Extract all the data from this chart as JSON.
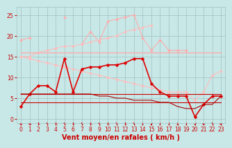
{
  "series": [
    {
      "name": "pink_spiky_top",
      "color": "#ffaaaa",
      "linewidth": 0.8,
      "marker": "D",
      "markersize": 2.0,
      "values": [
        19.0,
        19.5,
        null,
        null,
        null,
        24.5,
        null,
        18.0,
        21.0,
        18.5,
        23.5,
        24.0,
        24.5,
        25.0,
        19.5,
        16.5,
        19.0,
        16.5,
        16.5,
        16.5,
        null,
        null,
        null,
        null
      ]
    },
    {
      "name": "pink_rising_line",
      "color": "#ffbbbb",
      "linewidth": 0.8,
      "marker": "D",
      "markersize": 2.0,
      "values": [
        15.0,
        15.0,
        16.0,
        16.5,
        17.0,
        17.5,
        17.5,
        18.0,
        18.5,
        19.0,
        19.5,
        20.0,
        21.0,
        21.5,
        22.0,
        22.5,
        null,
        null,
        null,
        null,
        null,
        null,
        null,
        null
      ]
    },
    {
      "name": "pink_flat_16",
      "color": "#ffaaaa",
      "linewidth": 1.0,
      "marker": null,
      "markersize": 0,
      "values": [
        16.0,
        16.0,
        16.0,
        16.0,
        16.0,
        16.0,
        16.0,
        16.0,
        16.0,
        16.0,
        16.0,
        16.0,
        16.0,
        16.0,
        16.0,
        16.0,
        16.0,
        16.0,
        16.0,
        16.0,
        16.0,
        16.0,
        16.0,
        16.0
      ]
    },
    {
      "name": "pink_decreasing",
      "color": "#ffbbbb",
      "linewidth": 0.8,
      "marker": "D",
      "markersize": 2.0,
      "values": [
        15.0,
        14.5,
        14.0,
        13.5,
        13.0,
        12.5,
        12.0,
        11.5,
        11.0,
        10.5,
        10.0,
        9.5,
        9.0,
        8.5,
        8.0,
        7.5,
        7.0,
        6.5,
        6.5,
        6.5,
        4.5,
        6.5,
        10.5,
        11.5
      ]
    },
    {
      "name": "red_main_line",
      "color": "#dd0000",
      "linewidth": 1.2,
      "marker": "D",
      "markersize": 2.5,
      "values": [
        3.0,
        6.0,
        8.0,
        8.0,
        6.5,
        14.5,
        6.5,
        12.0,
        12.5,
        12.5,
        13.0,
        13.0,
        13.5,
        14.5,
        14.5,
        8.5,
        6.5,
        5.5,
        5.5,
        5.5,
        0.5,
        3.5,
        5.5,
        5.5
      ]
    },
    {
      "name": "red_low_flat",
      "color": "#cc0000",
      "linewidth": 0.8,
      "marker": null,
      "markersize": 0,
      "values": [
        6.0,
        6.0,
        6.0,
        6.0,
        6.0,
        6.0,
        6.0,
        6.0,
        6.0,
        6.0,
        6.0,
        6.0,
        6.0,
        6.0,
        6.0,
        6.0,
        6.0,
        6.0,
        6.0,
        6.0,
        6.0,
        6.0,
        6.0,
        6.0
      ]
    },
    {
      "name": "red_lower_flat",
      "color": "#cc0000",
      "linewidth": 0.8,
      "marker": null,
      "markersize": 0,
      "values": [
        4.0,
        4.0,
        4.0,
        4.0,
        4.0,
        4.0,
        4.0,
        4.0,
        4.0,
        4.0,
        4.0,
        4.0,
        4.0,
        4.0,
        4.0,
        4.0,
        4.0,
        4.0,
        4.0,
        4.0,
        4.0,
        4.0,
        4.0,
        4.0
      ]
    },
    {
      "name": "dark_red_decreasing_low",
      "color": "#aa0000",
      "linewidth": 0.8,
      "marker": null,
      "markersize": 0,
      "values": [
        6.0,
        6.0,
        6.0,
        6.0,
        6.0,
        6.0,
        6.0,
        6.0,
        6.0,
        5.5,
        5.5,
        5.0,
        5.0,
        4.5,
        4.5,
        4.5,
        4.0,
        4.0,
        3.0,
        2.5,
        2.5,
        3.5,
        3.5,
        5.5
      ]
    }
  ],
  "xlabel": "Vent moyen/en rafales ( km/h )",
  "xlim": [
    -0.5,
    23.5
  ],
  "ylim": [
    -1,
    27
  ],
  "yticks": [
    0,
    5,
    10,
    15,
    20,
    25
  ],
  "xticks": [
    0,
    1,
    2,
    3,
    4,
    5,
    6,
    7,
    8,
    9,
    10,
    11,
    12,
    13,
    14,
    15,
    16,
    17,
    18,
    19,
    20,
    21,
    22,
    23
  ],
  "bg_color": "#c8e8e8",
  "grid_color": "#a0c0c0",
  "tick_color": "#cc0000",
  "label_color": "#cc0000",
  "arrow_symbols": [
    "←",
    "←",
    "↖",
    "↖",
    "↖",
    "↖",
    "↖",
    "↖",
    "↖",
    "↖",
    "↖",
    "↖",
    "↖",
    "↖",
    "↓",
    "↙",
    "↓",
    "↓",
    "↓",
    "↓",
    "↙",
    "←",
    "↖",
    "←"
  ],
  "xlabel_fontsize": 7,
  "tick_fontsize": 5.5
}
